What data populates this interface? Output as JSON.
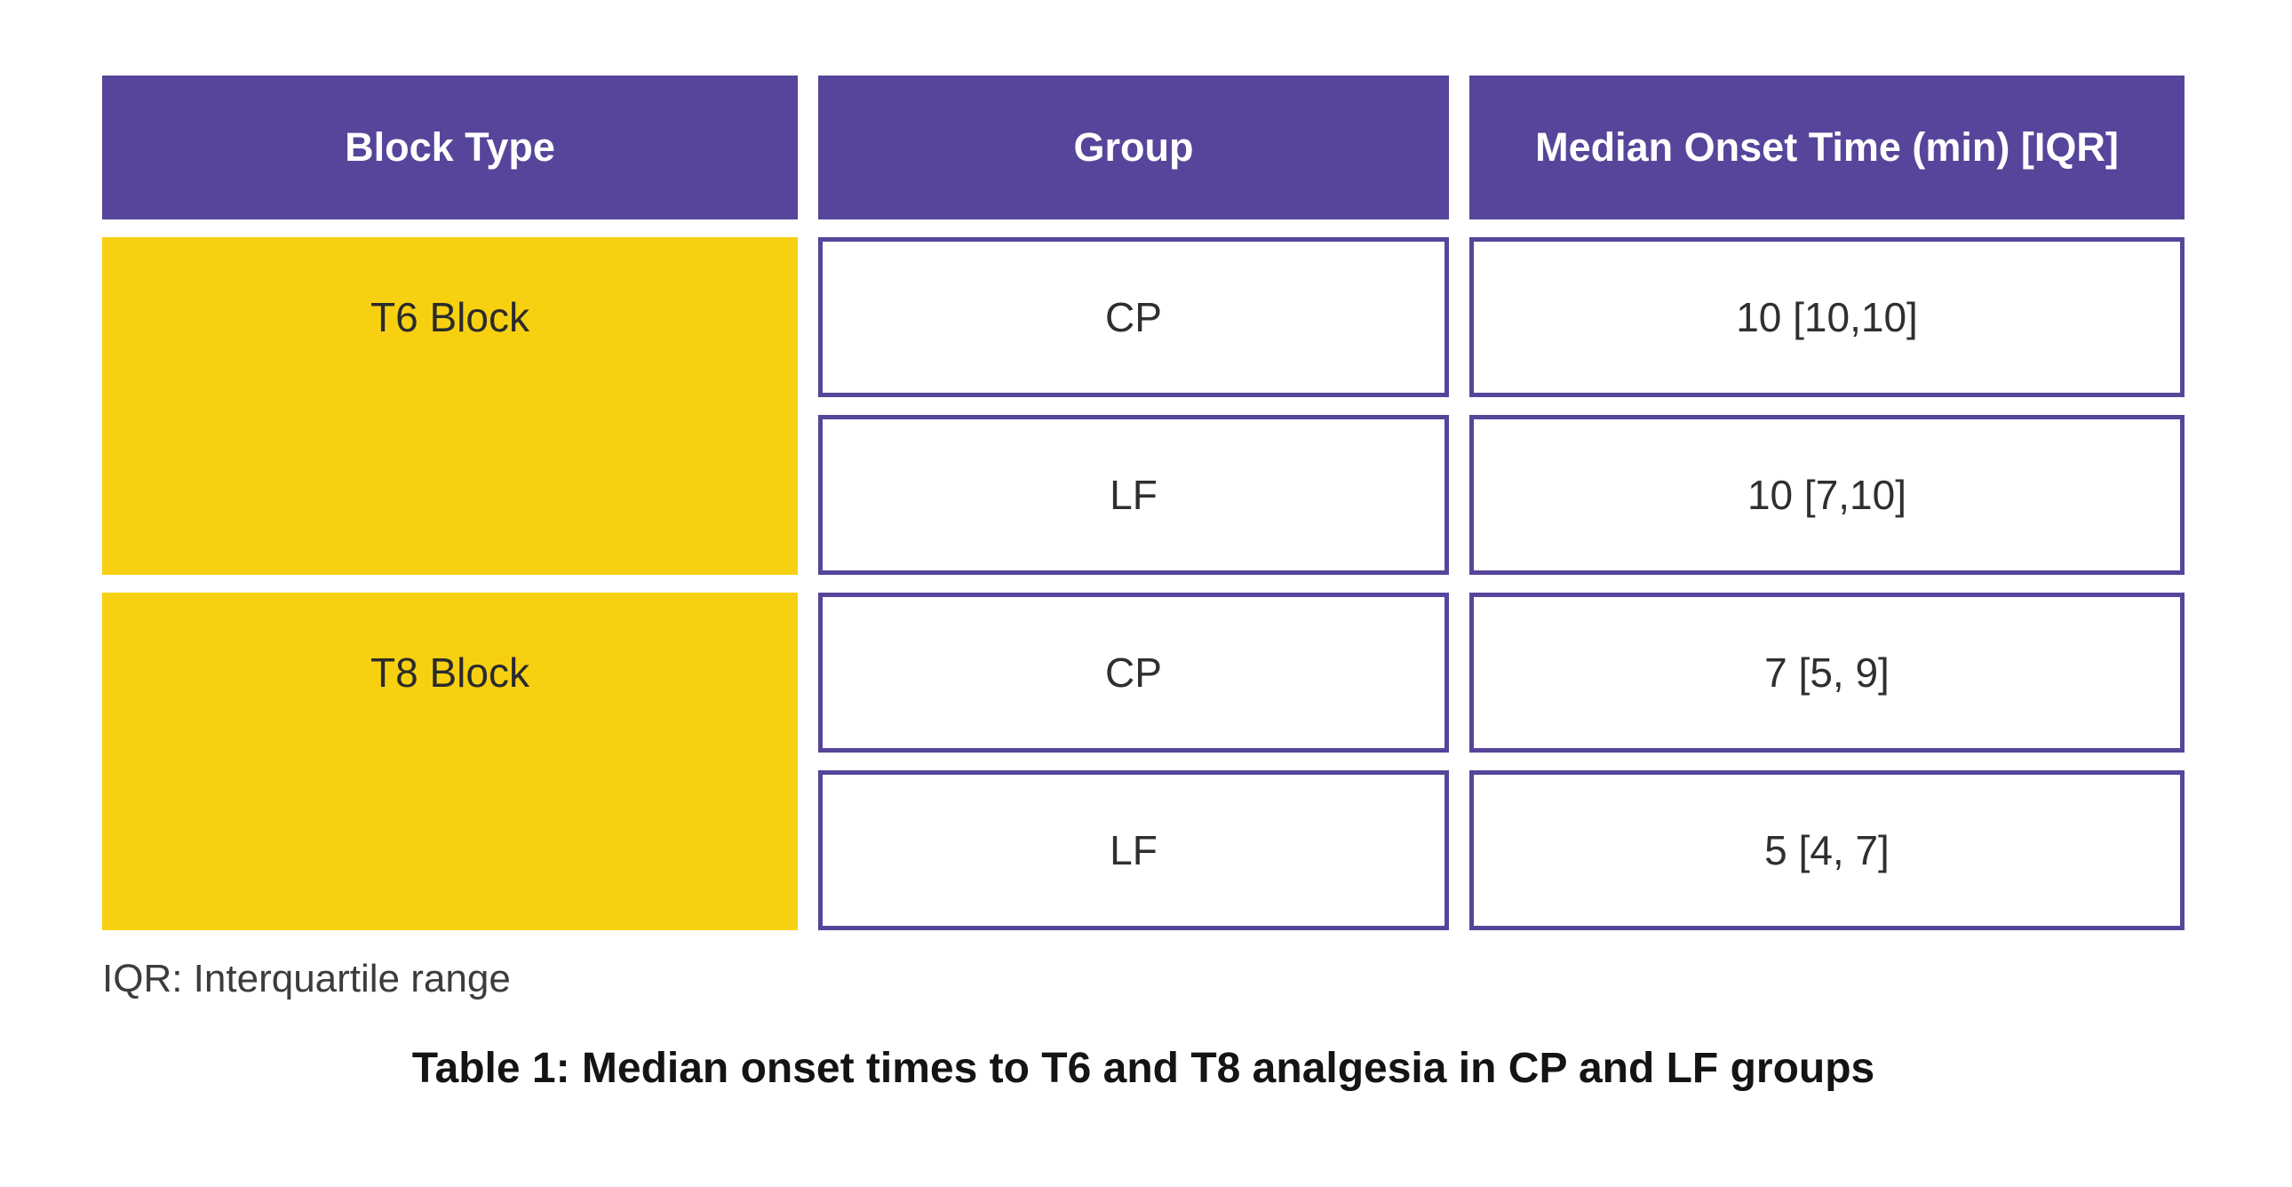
{
  "figure": {
    "table": {
      "columns": [
        "Block Type",
        "Group",
        "Median Onset Time (min) [IQR]"
      ],
      "blocks": [
        {
          "label": "T6 Block",
          "rows": [
            {
              "group": "CP",
              "value": "10 [10,10]"
            },
            {
              "group": "LF",
              "value": "10 [7,10]"
            }
          ]
        },
        {
          "label": "T8 Block",
          "rows": [
            {
              "group": "CP",
              "value": "7 [5, 9]"
            },
            {
              "group": "LF",
              "value": "5 [4, 7]"
            }
          ]
        }
      ]
    },
    "footnote": "IQR: Interquartile range",
    "caption": "Table 1: Median onset times to T6 and T8 analgesia in CP and LF groups"
  },
  "colors": {
    "header_purple": "#56459A",
    "cell_border_purple": "#56459A",
    "block_yellow": "#F7D111",
    "header_text": "#FFFFFF",
    "body_text": "#2F2F2F"
  },
  "chart_data": {
    "type": "table",
    "title": "Table 1: Median onset times to T6 and T8 analgesia in CP and LF groups",
    "columns": [
      "Block Type",
      "Group",
      "Median Onset Time (min) [IQR]"
    ],
    "rows": [
      [
        "T6 Block",
        "CP",
        "10 [10,10]"
      ],
      [
        "T6 Block",
        "LF",
        "10 [7,10]"
      ],
      [
        "T8 Block",
        "CP",
        "7 [5, 9]"
      ],
      [
        "T8 Block",
        "LF",
        "5 [4, 7]"
      ]
    ],
    "footnote": "IQR: Interquartile range",
    "layout_hints": {
      "header_background": "#56459A",
      "block_type_background": "#F7D111",
      "value_cell_border": "#56459A",
      "block_type_rowspan": 2
    }
  }
}
